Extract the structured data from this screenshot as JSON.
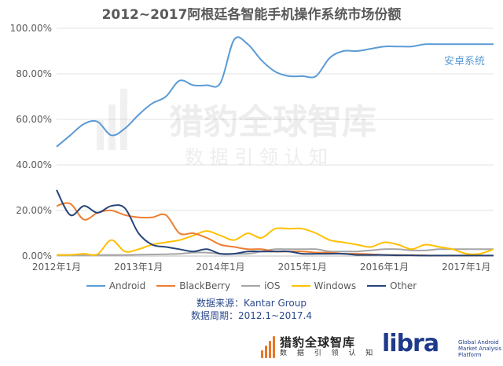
{
  "title": "2012~2017阿根廷各智能手机操作系统市场份额",
  "chart_data": {
    "type": "line",
    "title": "2012~2017阿根廷各智能手机操作系统市场份额",
    "xlabel": "",
    "ylabel": "",
    "x_ticks": [
      "2012年1月",
      "2013年1月",
      "2014年1月",
      "2015年1月",
      "2016年1月",
      "2017年1月"
    ],
    "y_ticks": [
      "0.00%",
      "20.00%",
      "40.00%",
      "60.00%",
      "80.00%",
      "100.00%"
    ],
    "ylim": [
      0,
      100
    ],
    "x_range_months": [
      0,
      64
    ],
    "grid": true,
    "legend_position": "bottom",
    "annotation": "安卓系统",
    "series": [
      {
        "name": "Android",
        "color": "#5b9bd5",
        "x": [
          0,
          2,
          4,
          6,
          8,
          10,
          12,
          14,
          16,
          18,
          20,
          22,
          24,
          26,
          28,
          30,
          32,
          34,
          36,
          38,
          40,
          42,
          44,
          46,
          48,
          50,
          52,
          54,
          56,
          58,
          60,
          62,
          64
        ],
        "values": [
          48,
          53,
          58,
          59,
          53,
          56,
          62,
          67,
          70,
          77,
          75,
          75,
          76,
          95,
          93,
          86,
          81,
          79,
          79,
          79,
          87,
          90,
          90,
          91,
          92,
          92,
          92,
          93,
          93,
          93,
          93,
          93,
          93
        ]
      },
      {
        "name": "BlackBerry",
        "color": "#ed7d31",
        "x": [
          0,
          2,
          4,
          6,
          8,
          10,
          12,
          14,
          16,
          18,
          20,
          22,
          24,
          26,
          28,
          30,
          32,
          34,
          36,
          38,
          40,
          42,
          44,
          46,
          48,
          50,
          52,
          54,
          56,
          58,
          60,
          62,
          64
        ],
        "values": [
          22,
          23,
          16,
          19,
          20,
          18,
          17,
          17,
          18,
          10,
          10,
          8,
          5,
          4,
          3,
          3,
          2,
          2,
          2,
          1.5,
          1.5,
          1,
          1,
          0.8,
          0.5,
          0.5,
          0.4,
          0.3,
          0.2,
          0.2,
          0.2,
          0.2,
          0.2
        ]
      },
      {
        "name": "iOS",
        "color": "#a5a5a5",
        "x": [
          0,
          2,
          4,
          6,
          8,
          10,
          12,
          14,
          16,
          18,
          20,
          22,
          24,
          26,
          28,
          30,
          32,
          34,
          36,
          38,
          40,
          42,
          44,
          46,
          48,
          50,
          52,
          54,
          56,
          58,
          60,
          62,
          64
        ],
        "values": [
          0.5,
          0.5,
          0.5,
          0.5,
          0.5,
          0.5,
          0.6,
          0.7,
          0.8,
          1,
          1.5,
          1.5,
          1,
          1,
          1,
          2,
          3,
          3,
          3,
          3,
          2,
          2,
          2,
          2.5,
          3,
          3,
          2.5,
          2.5,
          3,
          3,
          3,
          3,
          3
        ]
      },
      {
        "name": "Windows",
        "color": "#ffc000",
        "x": [
          0,
          2,
          4,
          6,
          8,
          10,
          12,
          14,
          16,
          18,
          20,
          22,
          24,
          26,
          28,
          30,
          32,
          34,
          36,
          38,
          40,
          42,
          44,
          46,
          48,
          50,
          52,
          54,
          56,
          58,
          60,
          62,
          64
        ],
        "values": [
          0.5,
          0.5,
          1,
          0.8,
          7,
          2,
          3,
          5,
          6,
          7,
          9,
          11,
          9,
          7,
          10,
          8,
          12,
          12,
          12,
          10,
          7,
          6,
          5,
          4,
          6,
          5,
          3,
          5,
          4,
          3,
          1,
          1,
          3
        ]
      },
      {
        "name": "Other",
        "color": "#264478",
        "x": [
          0,
          2,
          4,
          6,
          8,
          10,
          12,
          14,
          16,
          18,
          20,
          22,
          24,
          26,
          28,
          30,
          32,
          34,
          36,
          38,
          40,
          42,
          44,
          46,
          48,
          50,
          52,
          54,
          56,
          58,
          60,
          62,
          64
        ],
        "values": [
          29,
          18,
          22,
          19,
          22,
          21,
          10,
          5,
          4,
          3,
          2,
          3,
          1,
          1,
          2,
          2,
          2,
          2,
          1,
          1,
          1,
          1,
          0.5,
          0.5,
          0.5,
          0.3,
          0.3,
          0.2,
          0.2,
          0.2,
          0.2,
          0.2,
          0.2
        ]
      }
    ]
  },
  "source_line": "数据来源：Kantar Group",
  "period_line": "数据周期：2012.1~2017.4",
  "watermark": {
    "text_cn": "猎豹全球智库",
    "text_sub": "数 据 引 领 认 知"
  },
  "footer": {
    "brand_cn": "猎豹全球智库",
    "brand_sub": "数 据 引 领 认 知",
    "libra": "libra",
    "libra_desc": "Global Android Market Analysis Platform"
  }
}
